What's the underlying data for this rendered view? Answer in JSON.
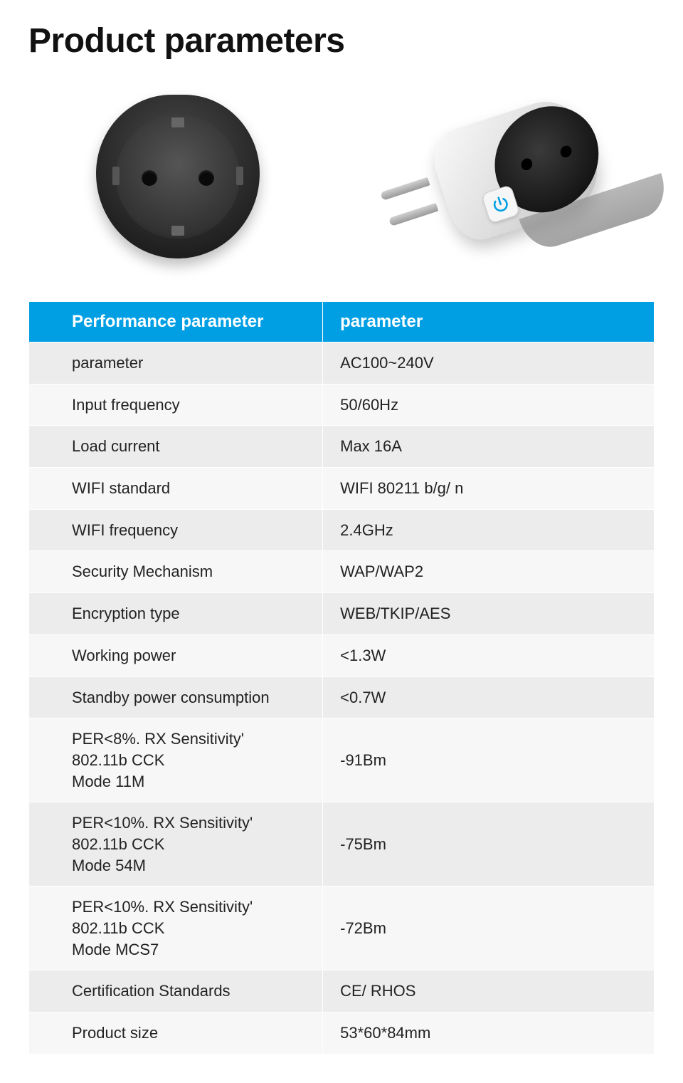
{
  "title": "Product parameters",
  "table": {
    "header_bg": "#009fe3",
    "header_fg": "#ffffff",
    "row_bg_odd": "#ececec",
    "row_bg_even": "#f7f7f7",
    "border_color": "#ffffff",
    "font_size_header": 24,
    "font_size_cell": 22,
    "col_widths": [
      "47%",
      "53%"
    ],
    "columns": [
      "Performance parameter",
      "parameter"
    ],
    "rows": [
      [
        "parameter",
        "AC100~240V"
      ],
      [
        "Input frequency",
        "50/60Hz"
      ],
      [
        "Load current",
        "Max 16A"
      ],
      [
        "WIFI standard",
        "WIFI 80211 b/g/ n"
      ],
      [
        "WIFI frequency",
        "2.4GHz"
      ],
      [
        "Security Mechanism",
        "WAP/WAP2"
      ],
      [
        "Encryption type",
        "WEB/TKIP/AES"
      ],
      [
        "Working power",
        "<1.3W"
      ],
      [
        "Standby power consumption",
        "<0.7W"
      ],
      [
        "PER<8%. RX Sensitivity'\n 802.11b CCK\nMode 11M",
        "-91Bm"
      ],
      [
        "PER<10%. RX Sensitivity'\n 802.11b CCK\nMode 54M",
        "-75Bm"
      ],
      [
        "PER<10%. RX Sensitivity'\n 802.11b CCK\nMode MCS7",
        "-72Bm"
      ],
      [
        "Certification Standards",
        "CE/ RHOS"
      ],
      [
        "Product size",
        "53*60*84mm"
      ]
    ]
  },
  "images": {
    "front_label": "smart-plug-front-view",
    "angle_label": "smart-plug-angled-view",
    "power_icon_color": "#009fe3"
  }
}
